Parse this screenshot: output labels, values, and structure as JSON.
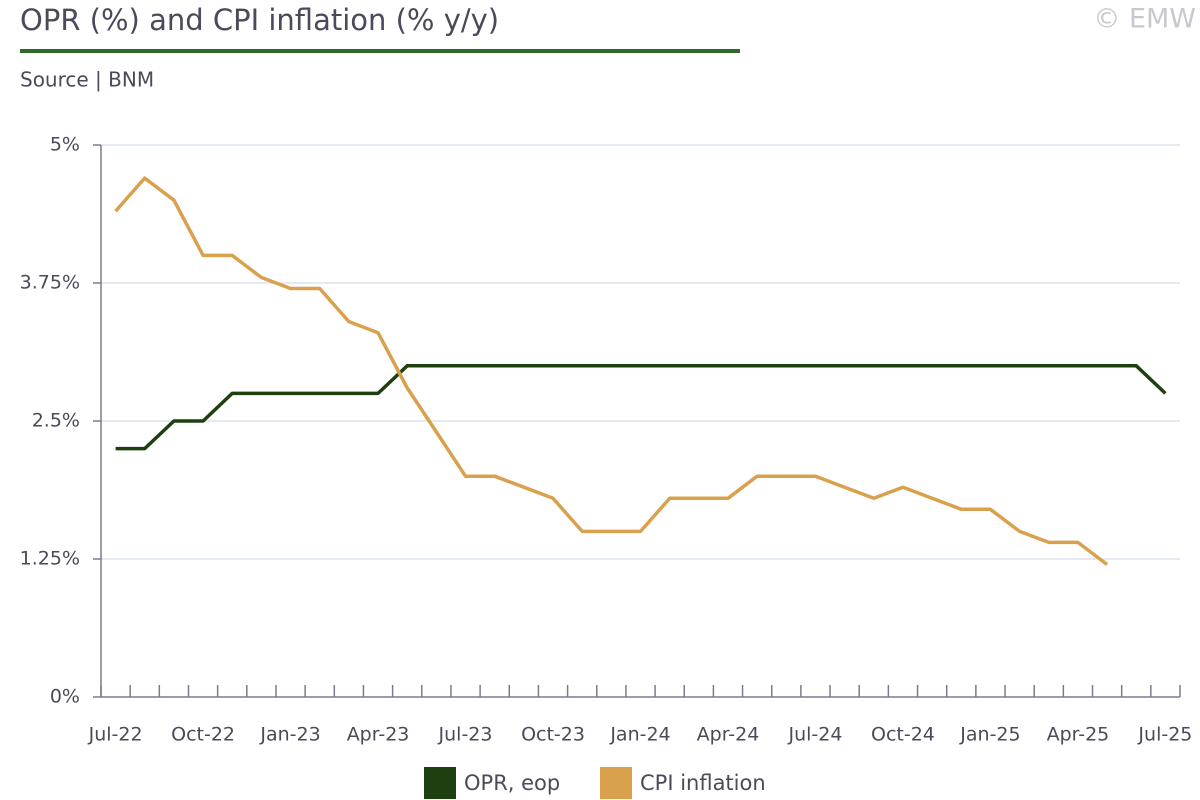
{
  "chart_data": {
    "type": "line",
    "title": "OPR (%) and CPI inflation (% y/y)",
    "subtitle": "Source | BNM",
    "credit": "© EMW",
    "categories": [
      "Jul-22",
      null,
      null,
      "Oct-22",
      null,
      null,
      "Jan-23",
      null,
      null,
      "Apr-23",
      null,
      null,
      "Jul-23",
      null,
      null,
      "Oct-23",
      null,
      null,
      "Jan-24",
      null,
      null,
      "Apr-24",
      null,
      null,
      "Jul-24",
      null,
      null,
      "Oct-24",
      null,
      null,
      "Jan-25",
      null,
      null,
      "Apr-25",
      null,
      null,
      "Jul-25"
    ],
    "series": [
      {
        "name": "OPR, eop",
        "color": "#1e4011",
        "values": [
          2.25,
          2.25,
          2.5,
          2.5,
          2.75,
          2.75,
          2.75,
          2.75,
          2.75,
          2.75,
          3.0,
          3.0,
          3.0,
          3.0,
          3.0,
          3.0,
          3.0,
          3.0,
          3.0,
          3.0,
          3.0,
          3.0,
          3.0,
          3.0,
          3.0,
          3.0,
          3.0,
          3.0,
          3.0,
          3.0,
          3.0,
          3.0,
          3.0,
          3.0,
          3.0,
          3.0,
          2.75
        ]
      },
      {
        "name": "CPI inflation",
        "color": "#d9a04e",
        "values": [
          4.4,
          4.7,
          4.5,
          4.0,
          4.0,
          3.8,
          3.7,
          3.7,
          3.4,
          3.3,
          2.8,
          2.4,
          2.0,
          2.0,
          1.9,
          1.8,
          1.5,
          1.5,
          1.5,
          1.8,
          1.8,
          1.8,
          2.0,
          2.0,
          2.0,
          1.9,
          1.8,
          1.9,
          1.8,
          1.7,
          1.7,
          1.5,
          1.4,
          1.4,
          1.2,
          null,
          null
        ]
      }
    ],
    "ylim": [
      0,
      5
    ],
    "yticks": [
      {
        "value": 0,
        "label": "0%"
      },
      {
        "value": 1.25,
        "label": "1.25%"
      },
      {
        "value": 2.5,
        "label": "2.5%"
      },
      {
        "value": 3.75,
        "label": "3.75%"
      },
      {
        "value": 5,
        "label": "5%"
      }
    ],
    "grid": true
  }
}
